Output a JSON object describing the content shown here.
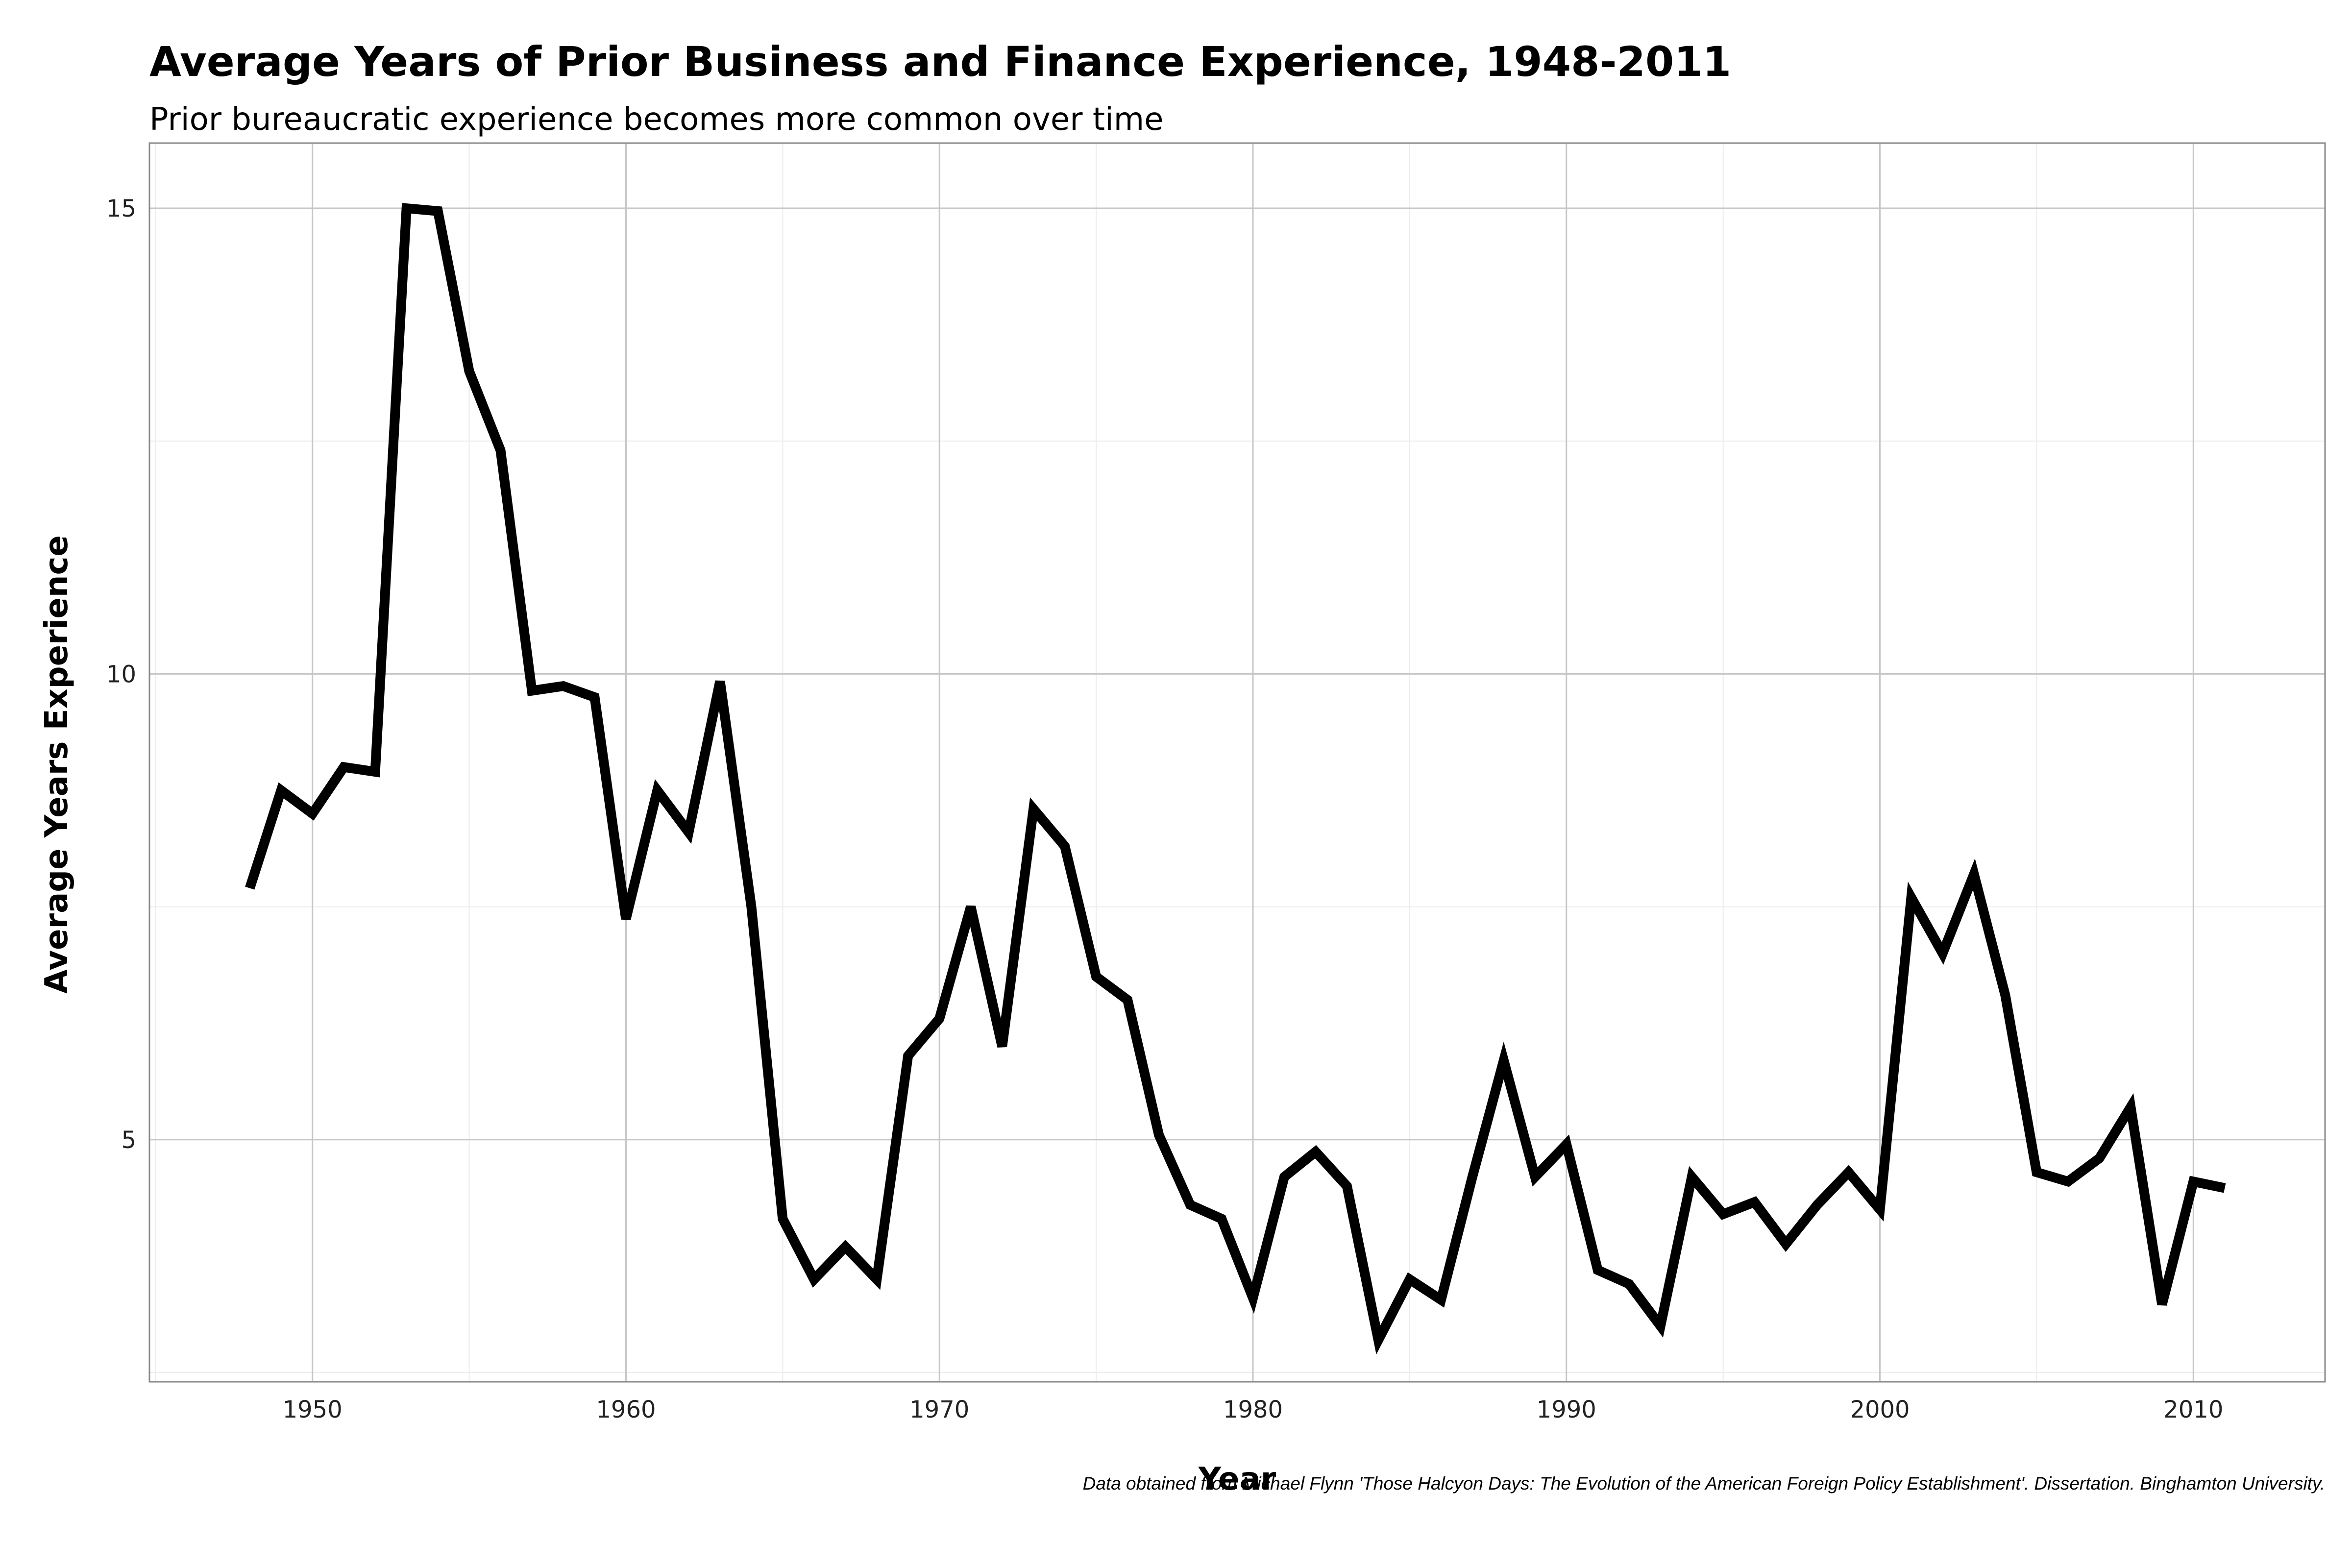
{
  "chart_data": {
    "type": "line",
    "title": "Average Years of Prior Business and Finance Experience, 1948-2011",
    "subtitle": "Prior bureaucratic experience becomes more common over time",
    "xlabel": "Year",
    "ylabel": "Average Years Experience",
    "caption": "Data obtained from Michael Flynn 'Those Halcyon Days: The Evolution of the American Foreign Policy Establishment'. Dissertation. Binghamton University.",
    "xlim": [
      1944.8,
      2014.2
    ],
    "ylim": [
      2.4,
      15.7
    ],
    "x_ticks": [
      1950,
      1960,
      1970,
      1980,
      1990,
      2000,
      2010
    ],
    "y_ticks": [
      5,
      10,
      15
    ],
    "x_tick_labels": [
      "1950",
      "1960",
      "1970",
      "1980",
      "1990",
      "2000",
      "2010"
    ],
    "y_tick_labels": [
      "5",
      "10",
      "15"
    ],
    "grid": true,
    "legend": "none",
    "colors": {
      "line": "#000000",
      "grid_major": "#c6c6c6",
      "grid_minor": "#ececec",
      "panel_border": "#8a8a8a"
    },
    "series": [
      {
        "x": [
          1948,
          1949,
          1950,
          1951,
          1952,
          1953,
          1954,
          1955,
          1956,
          1957,
          1958,
          1959,
          1960,
          1961,
          1962,
          1963,
          1964,
          1965,
          1966,
          1967,
          1968,
          1969,
          1970,
          1971,
          1972,
          1973,
          1974,
          1975,
          1976,
          1977,
          1978,
          1979,
          1980,
          1981,
          1982,
          1983,
          1984,
          1985,
          1986,
          1987,
          1988,
          1989,
          1990,
          1991,
          1992,
          1993,
          1994,
          1995,
          1996,
          1997,
          1998,
          1999,
          2000,
          2001,
          2002,
          2003,
          2004,
          2005,
          2006,
          2007,
          2008,
          2009,
          2010,
          2011
        ],
        "values": [
          7.7,
          8.75,
          8.5,
          9.0,
          8.95,
          15.0,
          14.97,
          13.25,
          12.4,
          9.82,
          9.87,
          9.75,
          7.37,
          8.75,
          8.3,
          9.92,
          7.5,
          4.15,
          3.5,
          3.85,
          3.5,
          5.9,
          6.3,
          7.5,
          6.0,
          8.55,
          8.15,
          6.75,
          6.5,
          5.05,
          4.3,
          4.15,
          3.3,
          4.6,
          4.87,
          4.5,
          2.85,
          3.5,
          3.28,
          4.6,
          5.85,
          4.6,
          4.95,
          3.6,
          3.45,
          3.0,
          4.6,
          4.2,
          4.33,
          3.88,
          4.3,
          4.65,
          4.25,
          7.6,
          7.0,
          7.85,
          6.55,
          4.65,
          4.55,
          4.8,
          5.35,
          3.23,
          4.55,
          4.48
        ]
      }
    ]
  }
}
